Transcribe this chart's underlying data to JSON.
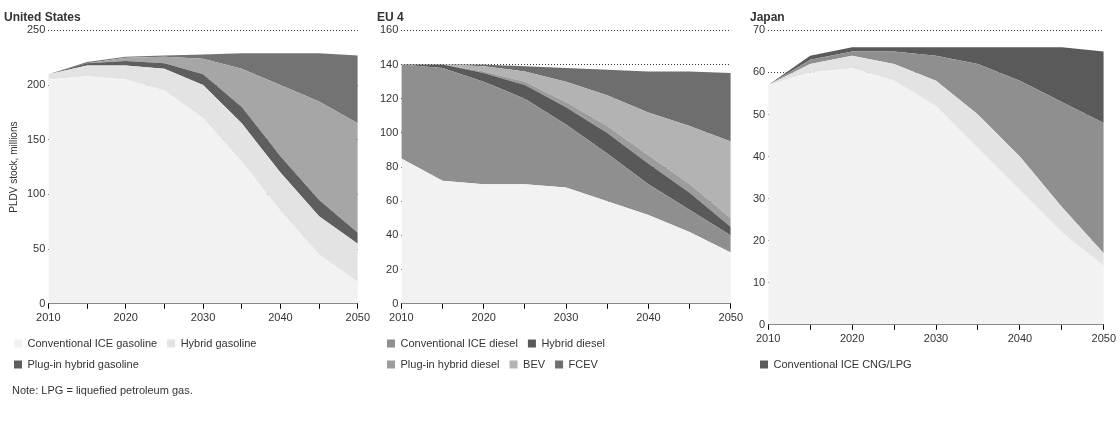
{
  "chart_data": [
    {
      "type": "area",
      "title": "United States",
      "ylabel": "PLDV stock, millions",
      "stacked": true,
      "grid": "y",
      "legend": "bottom",
      "x": [
        2010,
        2015,
        2020,
        2025,
        2030,
        2035,
        2040,
        2045,
        2050
      ],
      "xlim": [
        2010,
        2050
      ],
      "xticks": [
        2010,
        {
          "value": 2015,
          "label": null
        },
        2020,
        {
          "value": 2025,
          "label": null
        },
        2030,
        {
          "value": 2035,
          "label": null
        },
        2040,
        {
          "value": 2045,
          "label": null
        },
        2050
      ],
      "ylim": [
        0,
        250
      ],
      "yticks": [
        0,
        50,
        100,
        150,
        200,
        250
      ],
      "series": [
        {
          "name": "Conventional ICE gasoline",
          "color": "#f2f2f2",
          "values": [
            205,
            208,
            205,
            195,
            170,
            130,
            85,
            45,
            20
          ]
        },
        {
          "name": "Hybrid gasoline",
          "color": "#e3e3e3",
          "values": [
            5,
            10,
            13,
            20,
            30,
            35,
            35,
            35,
            35
          ]
        },
        {
          "name": "Plug-in hybrid gasoline",
          "color": "#5e5e5e",
          "values": [
            0,
            2,
            4,
            5,
            10,
            15,
            15,
            15,
            10
          ]
        },
        {
          "color": "#a6a6a6",
          "values": [
            0,
            0,
            3,
            6,
            14,
            35,
            65,
            90,
            100
          ]
        },
        {
          "color": "#737373",
          "values": [
            0,
            1,
            1,
            1,
            4,
            14,
            29,
            44,
            62
          ]
        }
      ],
      "annotations": [
        "Note: LPG = liquefied petroleum gas."
      ]
    },
    {
      "type": "area",
      "title": "EU 4",
      "stacked": true,
      "grid": "y",
      "legend": "bottom",
      "x": [
        2010,
        2015,
        2020,
        2025,
        2030,
        2035,
        2040,
        2045,
        2050
      ],
      "xlim": [
        2010,
        2050
      ],
      "xticks": [
        2010,
        {
          "value": 2015,
          "label": null
        },
        2020,
        {
          "value": 2025,
          "label": null
        },
        2030,
        {
          "value": 2035,
          "label": null
        },
        2040,
        {
          "value": 2045,
          "label": null
        },
        2050
      ],
      "ylim": [
        0,
        160
      ],
      "yticks": [
        0,
        20,
        40,
        60,
        80,
        100,
        120,
        140,
        160
      ],
      "series": [
        {
          "color": "#f2f2f2",
          "values": [
            85,
            72,
            70,
            70,
            68,
            60,
            52,
            42,
            30
          ]
        },
        {
          "name": "Conventional ICE diesel",
          "color": "#8f8f8f",
          "values": [
            55,
            66,
            60,
            50,
            37,
            28,
            18,
            13,
            10
          ]
        },
        {
          "name": "Hybrid diesel",
          "color": "#595959",
          "values": [
            0,
            2,
            5,
            8,
            10,
            12,
            12,
            10,
            5
          ]
        },
        {
          "name": "Plug-in hybrid diesel",
          "color": "#9c9c9c",
          "values": [
            0,
            0,
            1,
            2,
            3,
            4,
            5,
            5,
            5
          ]
        },
        {
          "name": "BEV",
          "color": "#b3b3b3",
          "values": [
            0,
            0,
            3,
            6,
            12,
            18,
            25,
            34,
            45
          ]
        },
        {
          "name": "FCEV",
          "color": "#6e6e6e",
          "values": [
            0,
            0,
            1,
            3,
            8,
            15,
            24,
            32,
            40
          ]
        }
      ]
    },
    {
      "type": "area",
      "title": "Japan",
      "stacked": true,
      "grid": "y",
      "legend": "bottom",
      "x": [
        2010,
        2015,
        2020,
        2025,
        2030,
        2035,
        2040,
        2045,
        2050
      ],
      "xlim": [
        2010,
        2050
      ],
      "xticks": [
        2010,
        {
          "value": 2015,
          "label": null
        },
        2020,
        {
          "value": 2025,
          "label": null
        },
        2030,
        {
          "value": 2035,
          "label": null
        },
        2040,
        {
          "value": 2045,
          "label": null
        },
        2050
      ],
      "ylim": [
        0,
        70
      ],
      "yticks": [
        0,
        10,
        20,
        30,
        40,
        50,
        60,
        70
      ],
      "series": [
        {
          "color": "#f2f2f2",
          "values": [
            57,
            60,
            61,
            58,
            52,
            42,
            32,
            22,
            14
          ]
        },
        {
          "color": "#e3e3e3",
          "values": [
            0,
            2,
            3,
            4,
            6,
            8,
            8,
            6,
            3
          ]
        },
        {
          "color": "#8f8f8f",
          "values": [
            0,
            1,
            1,
            3,
            6,
            12,
            18,
            25,
            31
          ]
        },
        {
          "name": "Conventional ICE CNG/LPG",
          "color": "#5a5a5a",
          "values": [
            0,
            1,
            1,
            1,
            2,
            4,
            8,
            13,
            17
          ]
        }
      ]
    }
  ]
}
